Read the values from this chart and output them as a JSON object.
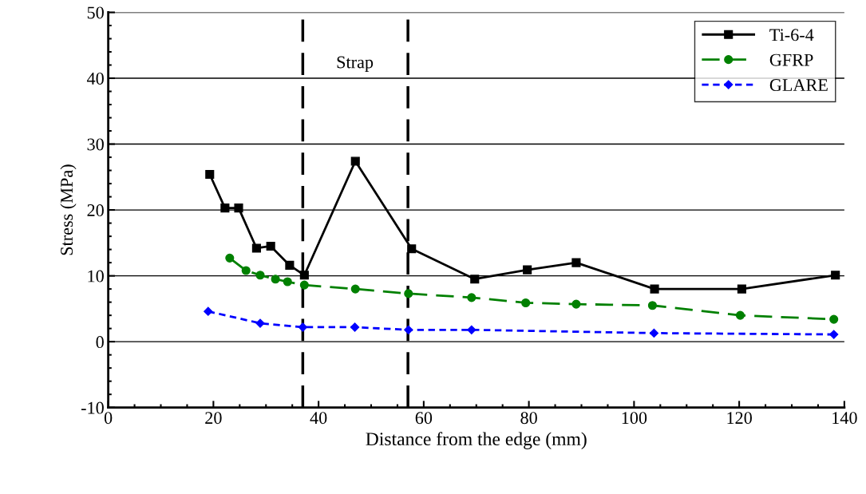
{
  "chart_data": {
    "type": "line",
    "xlabel": "Distance from the edge (mm)",
    "ylabel": "Stress (MPa)",
    "xlim": [
      0,
      140
    ],
    "xticks": [
      0,
      20,
      40,
      60,
      80,
      100,
      120,
      140
    ],
    "ylim": [
      -10,
      50
    ],
    "yticks": [
      -10,
      0,
      10,
      20,
      30,
      40,
      50
    ],
    "grid": "y",
    "legend": "top right",
    "series": [
      {
        "name": "Ti-6-4",
        "color": "#000000",
        "marker": "square",
        "line_style": "solid",
        "x": [
          19.3,
          22.2,
          24.8,
          28.2,
          30.9,
          34.5,
          37.3,
          47.0,
          57.7,
          69.7,
          79.7,
          89.0,
          103.9,
          120.5,
          138.3
        ],
        "values": [
          25.4,
          20.3,
          20.3,
          14.2,
          14.5,
          11.6,
          10.1,
          27.4,
          14.1,
          9.5,
          10.9,
          12.0,
          8.0,
          8.0,
          10.1
        ]
      },
      {
        "name": "GFRP",
        "color": "#008000",
        "marker": "circle",
        "line_style": "dashed",
        "x": [
          23.1,
          26.2,
          28.9,
          31.8,
          34.1,
          37.3,
          47.0,
          57.1,
          69.1,
          79.4,
          89.0,
          103.5,
          120.2,
          138.0
        ],
        "values": [
          12.7,
          10.8,
          10.1,
          9.5,
          9.1,
          8.6,
          8.0,
          7.3,
          6.7,
          5.9,
          5.7,
          5.5,
          4.0,
          3.4
        ]
      },
      {
        "name": "GLARE",
        "color": "#0000ff",
        "marker": "diamond",
        "line_style": "dotted",
        "x": [
          19.0,
          28.9,
          37.0,
          46.9,
          57.1,
          69.1,
          103.8,
          138.0
        ],
        "values": [
          4.6,
          2.8,
          2.2,
          2.2,
          1.8,
          1.8,
          1.3,
          1.1
        ]
      }
    ],
    "ref_lines": [
      {
        "axis": "x",
        "value": 37,
        "color": "#000000",
        "line_style": "dashed"
      },
      {
        "axis": "x",
        "value": 57,
        "color": "#000000",
        "line_style": "dashed"
      }
    ],
    "annotations": [
      "Strap"
    ]
  }
}
